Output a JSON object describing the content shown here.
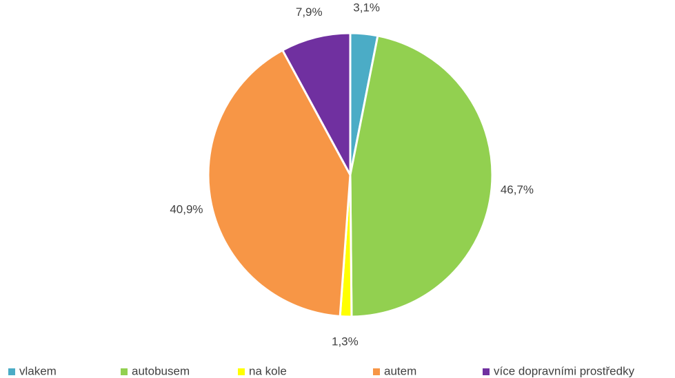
{
  "chart_data": {
    "type": "pie",
    "categories": [
      "vlakem",
      "autobusem",
      "na kole",
      "autem",
      "více dopravními prostředky"
    ],
    "values": [
      3.1,
      46.7,
      1.3,
      40.9,
      7.9
    ],
    "value_labels": [
      "3,1%",
      "46,7%",
      "1,3%",
      "40,9%",
      "7,9%"
    ],
    "colors": [
      "#4bacc6",
      "#92d050",
      "#ffff00",
      "#f79646",
      "#7030a0"
    ],
    "legend": "bottom"
  }
}
